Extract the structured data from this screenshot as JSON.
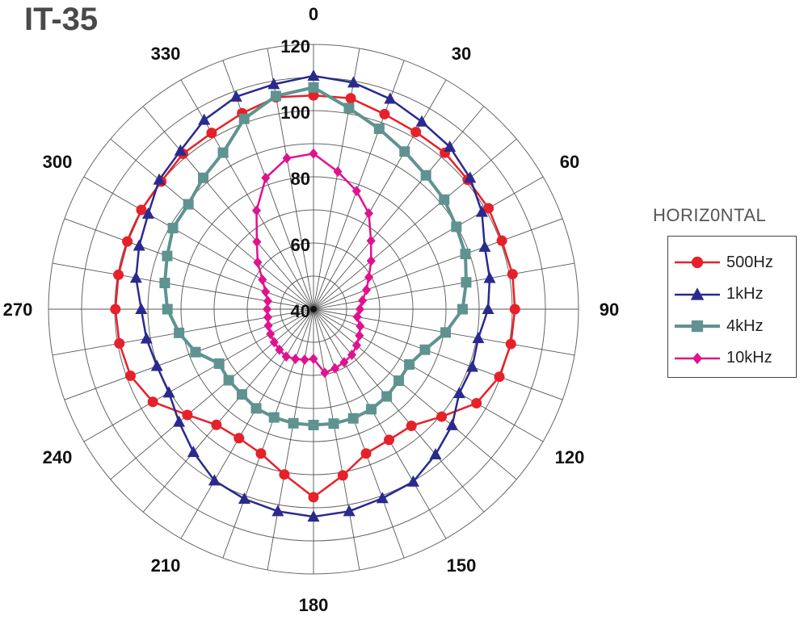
{
  "title": "IT-35",
  "chart_data": {
    "type": "polar-line",
    "title": "IT-35",
    "angle_unit": "degrees",
    "angle_direction": "clockwise",
    "angle_zero": "top",
    "angles": [
      0,
      10,
      20,
      30,
      40,
      50,
      60,
      70,
      80,
      90,
      100,
      110,
      120,
      130,
      140,
      150,
      160,
      170,
      180,
      190,
      200,
      210,
      220,
      230,
      240,
      250,
      260,
      270,
      280,
      290,
      300,
      310,
      320,
      330,
      340,
      350
    ],
    "angle_tick_labels": [
      "0",
      "30",
      "60",
      "90",
      "120",
      "150",
      "180",
      "210",
      "240",
      "270",
      "300",
      "330"
    ],
    "angle_ticks": [
      0,
      30,
      60,
      90,
      120,
      150,
      180,
      210,
      240,
      270,
      300,
      330
    ],
    "radial_range": [
      40,
      120
    ],
    "radial_grid_step": 10,
    "angular_grid_step": 10,
    "radial_tick_labels": [
      "40",
      "60",
      "80",
      "100",
      "120"
    ],
    "radial_ticks": [
      40,
      60,
      80,
      100,
      120
    ],
    "grid": true,
    "legend_title": "HORIZ0NTAL",
    "legend_position": "right",
    "series": [
      {
        "name": "500Hz",
        "color": "#e62129",
        "marker": "circle",
        "values": [
          104.6,
          104.7,
          102.7,
          101.8,
          101.7,
          100.8,
          101,
          100.5,
          101,
          100.8,
          100.5,
          99.7,
          96.8,
          90.5,
          86,
          85.6,
          86.4,
          91,
          96.8,
          90.7,
          86.4,
          85,
          85.6,
          89.7,
          96,
          98.8,
          99.5,
          99.8,
          99.8,
          99.8,
          100,
          100,
          101.3,
          101.5,
          103,
          105
        ]
      },
      {
        "name": "1kHz",
        "color": "#2a2a8e",
        "marker": "triangle",
        "values": [
          110.5,
          109.5,
          107.6,
          105.4,
          104,
          101.7,
          98.7,
          95,
          94,
          92.7,
          90.5,
          91,
          90.8,
          94.6,
          97.3,
          100.2,
          100.8,
          102,
          102.7,
          102,
          101,
          99.8,
          96.4,
          93,
          90.4,
          90.3,
          91.2,
          92,
          94.4,
          96,
          97.6,
          100.8,
          102.5,
          106,
          108.3,
          109
        ]
      },
      {
        "name": "4kHz",
        "color": "#5e9390",
        "marker": "square",
        "values": [
          107,
          101.7,
          98,
          95,
          92.8,
          91.5,
          89.8,
          88.8,
          86.8,
          85,
          80.5,
          75.8,
          73.4,
          73.6,
          74.4,
          74.9,
          75.1,
          75.1,
          75,
          75,
          74.8,
          74.6,
          73.6,
          73.4,
          72.9,
          77.9,
          81.2,
          84.1,
          85.6,
          87,
          89,
          89.3,
          91.8,
          94.6,
          101.2,
          105.4
        ]
      },
      {
        "name": "10kHz",
        "color": "#e0128f",
        "marker": "diamond",
        "values": [
          87,
          82.2,
          78,
          73.4,
          67,
          62.7,
          59.3,
          57,
          55,
          54,
          53.4,
          55,
          56,
          57,
          58,
          58.5,
          59,
          59.5,
          55,
          55.5,
          56,
          56.5,
          56,
          55.5,
          55,
          54.5,
          54,
          54,
          54,
          55.4,
          57.8,
          62,
          66.6,
          74.4,
          82.2,
          86.3
        ]
      }
    ]
  }
}
